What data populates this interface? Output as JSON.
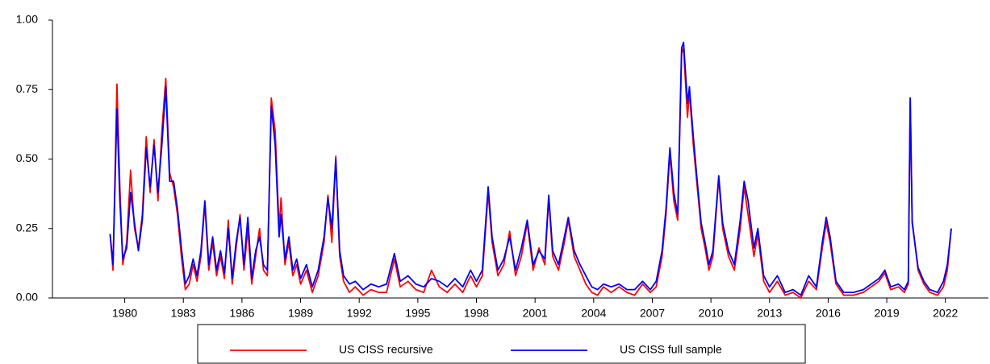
{
  "chart_data": {
    "type": "line",
    "x": [
      1979.25,
      1979.4,
      1979.6,
      1979.75,
      1979.9,
      1980.1,
      1980.3,
      1980.5,
      1980.7,
      1980.9,
      1981.1,
      1981.3,
      1981.5,
      1981.7,
      1981.9,
      1982.1,
      1982.3,
      1982.5,
      1982.7,
      1982.9,
      1983.1,
      1983.3,
      1983.5,
      1983.7,
      1983.9,
      1984.1,
      1984.3,
      1984.5,
      1984.7,
      1984.9,
      1985.1,
      1985.3,
      1985.5,
      1985.7,
      1985.9,
      1986.1,
      1986.3,
      1986.5,
      1986.7,
      1986.9,
      1987.1,
      1987.3,
      1987.5,
      1987.7,
      1987.9,
      1988.0,
      1988.2,
      1988.4,
      1988.6,
      1988.8,
      1989.0,
      1989.3,
      1989.6,
      1989.9,
      1990.2,
      1990.4,
      1990.6,
      1990.8,
      1991.0,
      1991.2,
      1991.5,
      1991.8,
      1992.2,
      1992.6,
      1993.0,
      1993.4,
      1993.8,
      1994.1,
      1994.5,
      1994.9,
      1995.3,
      1995.7,
      1996.1,
      1996.5,
      1996.9,
      1997.3,
      1997.7,
      1998.0,
      1998.3,
      1998.6,
      1998.8,
      1999.1,
      1999.4,
      1999.7,
      2000.0,
      2000.3,
      2000.6,
      2000.9,
      2001.2,
      2001.5,
      2001.7,
      2001.9,
      2002.2,
      2002.5,
      2002.7,
      2003.0,
      2003.3,
      2003.6,
      2003.9,
      2004.2,
      2004.5,
      2004.9,
      2005.3,
      2005.7,
      2006.1,
      2006.5,
      2006.9,
      2007.2,
      2007.5,
      2007.7,
      2007.9,
      2008.1,
      2008.3,
      2008.5,
      2008.6,
      2008.8,
      2008.9,
      2009.1,
      2009.3,
      2009.5,
      2009.7,
      2009.9,
      2010.1,
      2010.4,
      2010.6,
      2010.9,
      2011.2,
      2011.5,
      2011.7,
      2011.9,
      2012.2,
      2012.4,
      2012.7,
      2013.0,
      2013.4,
      2013.8,
      2014.2,
      2014.6,
      2015.0,
      2015.4,
      2015.7,
      2015.9,
      2016.1,
      2016.4,
      2016.8,
      2017.3,
      2017.8,
      2018.2,
      2018.6,
      2018.9,
      2019.2,
      2019.6,
      2019.9,
      2020.1,
      2020.2,
      2020.3,
      2020.6,
      2020.9,
      2021.2,
      2021.6,
      2021.9,
      2022.1,
      2022.3
    ],
    "series": [
      {
        "name": "US CISS recursive",
        "color": "#ff0000",
        "values": [
          0.23,
          0.1,
          0.77,
          0.4,
          0.12,
          0.2,
          0.46,
          0.25,
          0.18,
          0.3,
          0.58,
          0.38,
          0.57,
          0.35,
          0.6,
          0.79,
          0.45,
          0.4,
          0.3,
          0.15,
          0.03,
          0.05,
          0.12,
          0.06,
          0.15,
          0.34,
          0.1,
          0.2,
          0.08,
          0.15,
          0.07,
          0.28,
          0.05,
          0.18,
          0.3,
          0.1,
          0.25,
          0.05,
          0.15,
          0.25,
          0.1,
          0.08,
          0.72,
          0.6,
          0.25,
          0.36,
          0.12,
          0.2,
          0.08,
          0.12,
          0.05,
          0.1,
          0.02,
          0.08,
          0.2,
          0.37,
          0.2,
          0.51,
          0.15,
          0.06,
          0.02,
          0.04,
          0.01,
          0.03,
          0.02,
          0.02,
          0.14,
          0.04,
          0.06,
          0.03,
          0.02,
          0.1,
          0.04,
          0.02,
          0.05,
          0.02,
          0.08,
          0.04,
          0.08,
          0.38,
          0.2,
          0.08,
          0.12,
          0.24,
          0.08,
          0.15,
          0.27,
          0.1,
          0.18,
          0.12,
          0.36,
          0.15,
          0.1,
          0.2,
          0.28,
          0.15,
          0.1,
          0.05,
          0.02,
          0.01,
          0.04,
          0.02,
          0.04,
          0.02,
          0.01,
          0.05,
          0.02,
          0.04,
          0.15,
          0.3,
          0.52,
          0.35,
          0.28,
          0.88,
          0.9,
          0.65,
          0.74,
          0.55,
          0.4,
          0.25,
          0.18,
          0.1,
          0.15,
          0.43,
          0.25,
          0.15,
          0.1,
          0.25,
          0.4,
          0.3,
          0.15,
          0.23,
          0.06,
          0.02,
          0.06,
          0.01,
          0.02,
          0.0,
          0.06,
          0.03,
          0.18,
          0.27,
          0.2,
          0.05,
          0.01,
          0.01,
          0.02,
          0.04,
          0.06,
          0.09,
          0.03,
          0.04,
          0.02,
          0.05,
          0.72,
          0.28,
          0.1,
          0.05,
          0.02,
          0.01,
          0.04,
          0.1,
          0.25
        ]
      },
      {
        "name": "US CISS full sample",
        "color": "#0000ff",
        "values": [
          0.23,
          0.12,
          0.68,
          0.35,
          0.14,
          0.18,
          0.38,
          0.27,
          0.17,
          0.28,
          0.54,
          0.4,
          0.55,
          0.38,
          0.55,
          0.76,
          0.42,
          0.42,
          0.32,
          0.18,
          0.05,
          0.08,
          0.14,
          0.08,
          0.17,
          0.35,
          0.12,
          0.22,
          0.1,
          0.17,
          0.09,
          0.25,
          0.07,
          0.2,
          0.29,
          0.12,
          0.29,
          0.07,
          0.17,
          0.22,
          0.12,
          0.1,
          0.69,
          0.55,
          0.22,
          0.3,
          0.14,
          0.22,
          0.1,
          0.14,
          0.07,
          0.12,
          0.04,
          0.1,
          0.22,
          0.36,
          0.25,
          0.5,
          0.17,
          0.08,
          0.05,
          0.06,
          0.03,
          0.05,
          0.04,
          0.05,
          0.16,
          0.06,
          0.08,
          0.05,
          0.04,
          0.07,
          0.06,
          0.04,
          0.07,
          0.04,
          0.1,
          0.06,
          0.1,
          0.4,
          0.22,
          0.1,
          0.14,
          0.22,
          0.1,
          0.18,
          0.28,
          0.12,
          0.17,
          0.14,
          0.37,
          0.17,
          0.12,
          0.22,
          0.29,
          0.17,
          0.12,
          0.08,
          0.04,
          0.03,
          0.05,
          0.04,
          0.05,
          0.03,
          0.03,
          0.06,
          0.03,
          0.06,
          0.17,
          0.32,
          0.54,
          0.38,
          0.3,
          0.9,
          0.92,
          0.7,
          0.76,
          0.58,
          0.42,
          0.27,
          0.2,
          0.12,
          0.17,
          0.44,
          0.27,
          0.17,
          0.12,
          0.28,
          0.42,
          0.35,
          0.18,
          0.25,
          0.08,
          0.04,
          0.08,
          0.02,
          0.03,
          0.01,
          0.08,
          0.04,
          0.2,
          0.29,
          0.22,
          0.06,
          0.02,
          0.02,
          0.03,
          0.05,
          0.07,
          0.1,
          0.04,
          0.05,
          0.03,
          0.06,
          0.72,
          0.27,
          0.11,
          0.06,
          0.03,
          0.02,
          0.06,
          0.12,
          0.25
        ]
      }
    ],
    "xlim": [
      1976.3,
      2024.2
    ],
    "xticks": [
      1980,
      1983,
      1986,
      1989,
      1992,
      1995,
      1998,
      2001,
      2004,
      2007,
      2010,
      2013,
      2016,
      2019,
      2022
    ],
    "ylim": [
      0,
      1
    ],
    "yticks": [
      {
        "value": 0,
        "label": "0.00"
      },
      {
        "value": 0.25,
        "label": "0.25"
      },
      {
        "value": 0.5,
        "label": "0.50"
      },
      {
        "value": 0.75,
        "label": "0.75"
      },
      {
        "value": 1,
        "label": "1.00"
      }
    ],
    "legend": "bottom"
  }
}
